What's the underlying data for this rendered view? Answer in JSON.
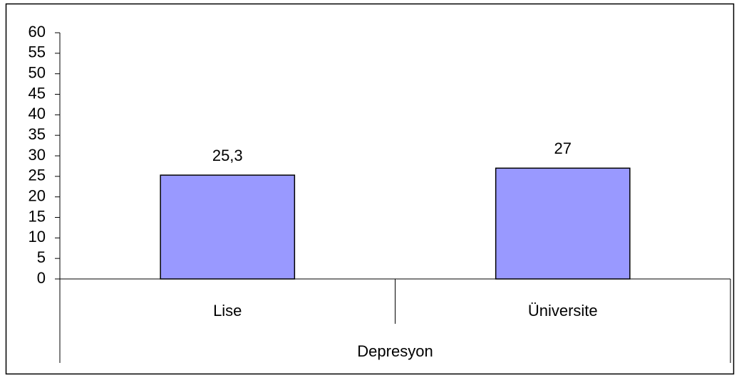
{
  "chart_data": {
    "type": "bar",
    "categories": [
      "Lise",
      "Üniversite"
    ],
    "group_label": "Depresyon",
    "values": [
      25.3,
      27
    ],
    "value_labels": [
      "25,3",
      "27"
    ],
    "color": "#9999ff",
    "ylim": [
      0,
      60
    ],
    "yticks": [
      0,
      5,
      10,
      15,
      20,
      25,
      30,
      35,
      40,
      45,
      50,
      55,
      60
    ]
  }
}
